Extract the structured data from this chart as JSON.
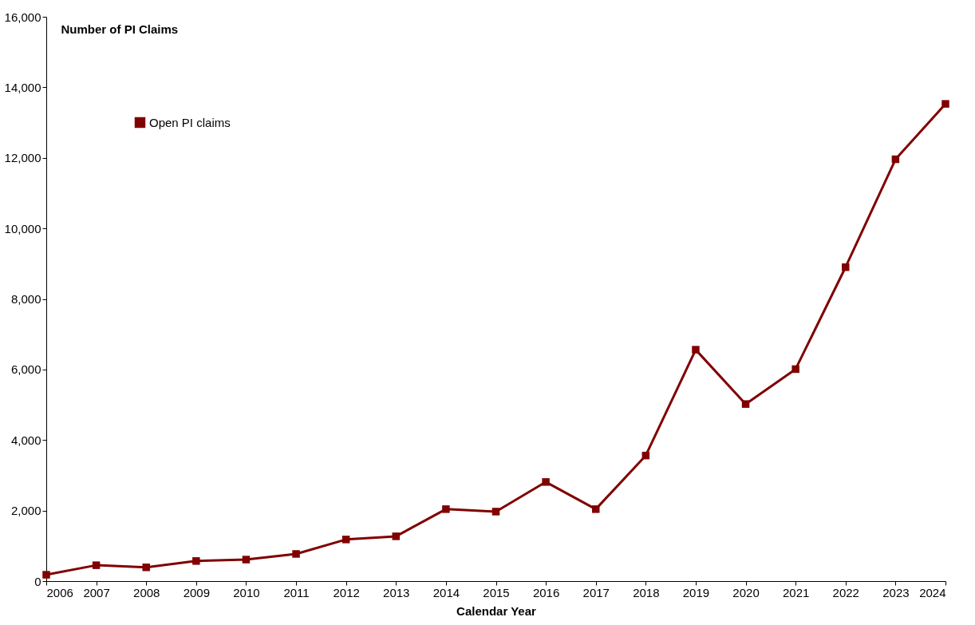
{
  "chart_data": {
    "type": "line",
    "ylabel": "Number of PI Claims",
    "xlabel": "Calendar Year",
    "categories": [
      "2006",
      "2007",
      "2008",
      "2009",
      "2010",
      "2011",
      "2012",
      "2013",
      "2014",
      "2015",
      "2016",
      "2017",
      "2018",
      "2019",
      "2020",
      "2021",
      "2022",
      "2023",
      "2024"
    ],
    "series": [
      {
        "name": "Open PI claims",
        "color": "#800000",
        "values": [
          180,
          450,
          390,
          570,
          610,
          770,
          1180,
          1270,
          2040,
          1970,
          2810,
          2040,
          3560,
          6560,
          5020,
          6010,
          8900,
          11960,
          13530
        ]
      }
    ],
    "ylim": [
      0,
      16000
    ],
    "yticks": [
      0,
      {
        "value": 2000,
        "label": "2,000"
      },
      {
        "value": 4000,
        "label": "4,000"
      },
      {
        "value": 6000,
        "label": "6,000"
      },
      {
        "value": 8000,
        "label": "8,000"
      },
      {
        "value": 10000,
        "label": "10,000"
      },
      {
        "value": 12000,
        "label": "12,000"
      },
      {
        "value": 14000,
        "label": "14,000"
      },
      {
        "value": 16000,
        "label": "16,000"
      }
    ],
    "marker": "square",
    "line_style": "solid",
    "legend": "top left",
    "grid": false
  }
}
